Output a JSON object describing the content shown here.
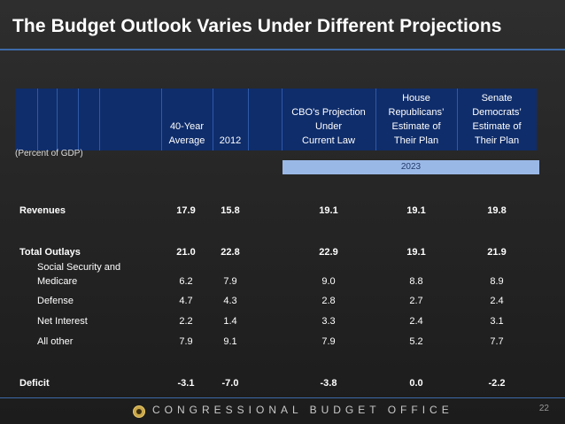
{
  "title": "The Budget Outlook Varies Under Different Projections",
  "table": {
    "headers": {
      "avg": [
        "40-Year",
        "Average"
      ],
      "y2012": [
        "2012"
      ],
      "cbo": [
        "CBO’s Projection",
        "Under",
        "Current Law"
      ],
      "house": [
        "House",
        "Republicans’",
        "Estimate of",
        "Their Plan"
      ],
      "senate": [
        "Senate",
        "Democrats’",
        "Estimate of",
        "Their Plan"
      ]
    },
    "units_label": "(Percent of GDP)",
    "year_label": "2023",
    "rows": [
      {
        "label": "Revenues",
        "values": [
          "17.9",
          "15.8",
          "19.1",
          "19.1",
          "19.8"
        ]
      },
      {
        "label": "Total Outlays",
        "values": [
          "21.0",
          "22.8",
          "22.9",
          "19.1",
          "21.9"
        ]
      },
      {
        "label_line1": "Social Security and",
        "label": "Medicare",
        "values": [
          "6.2",
          "7.9",
          "9.0",
          "8.8",
          "8.9"
        ]
      },
      {
        "label": "Defense",
        "values": [
          "4.7",
          "4.3",
          "2.8",
          "2.7",
          "2.4"
        ]
      },
      {
        "label": "Net Interest",
        "values": [
          "2.2",
          "1.4",
          "3.3",
          "2.4",
          "3.1"
        ]
      },
      {
        "label": "All other",
        "values": [
          "7.9",
          "9.1",
          "7.9",
          "5.2",
          "7.7"
        ]
      },
      {
        "label": "Deficit",
        "values": [
          "-3.1",
          "-7.0",
          "-3.8",
          "0.0",
          "-2.2"
        ]
      }
    ]
  },
  "footer": {
    "org": "CONGRESSIONAL BUDGET OFFICE",
    "page": "22"
  },
  "colors": {
    "header_band": "#0f2d6b",
    "year_band": "#9ab8e6",
    "rule": "#3d6aa8"
  }
}
